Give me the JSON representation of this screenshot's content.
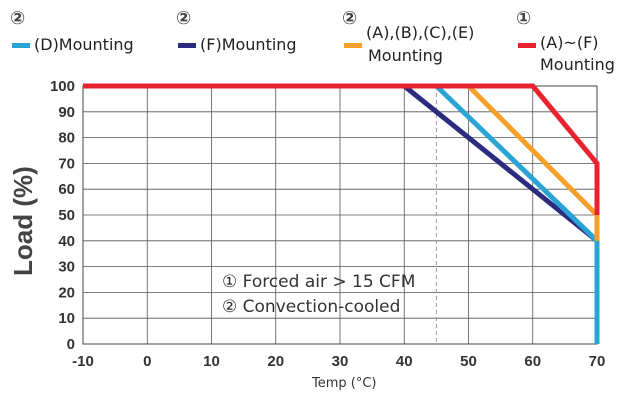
{
  "chart_data": {
    "type": "line",
    "title": "",
    "xlabel": "Temp (°C)",
    "ylabel": "Load (%)",
    "xlim": [
      -10,
      70
    ],
    "ylim": [
      0,
      100
    ],
    "xticks": [
      -10,
      0,
      10,
      20,
      30,
      40,
      50,
      60,
      70
    ],
    "yticks": [
      0,
      10,
      20,
      30,
      40,
      50,
      60,
      70,
      80,
      90,
      100
    ],
    "grid": true,
    "legend_position": "top",
    "series": [
      {
        "key": "F",
        "marker": "②",
        "name": "(F)Mounting",
        "color": "#2b2b80",
        "x": [
          -10,
          40,
          70,
          70
        ],
        "y": [
          100,
          100,
          40,
          0
        ]
      },
      {
        "key": "D",
        "marker": "②",
        "name": "(D)Mounting",
        "color": "#2aa4d4",
        "x": [
          -10,
          45,
          70,
          70
        ],
        "y": [
          100,
          100,
          40,
          0
        ]
      },
      {
        "key": "ABCE",
        "marker": "②",
        "name": "(A),(B),(C),(E) Mounting",
        "color": "#f5a02a",
        "x": [
          -10,
          50,
          70,
          70
        ],
        "y": [
          100,
          100,
          50,
          40
        ]
      },
      {
        "key": "AF",
        "marker": "①",
        "name": "(A)~(F) Mounting",
        "color": "#e8232d",
        "x": [
          -10,
          60,
          70,
          70
        ],
        "y": [
          100,
          100,
          70,
          50
        ]
      }
    ],
    "reference_line": {
      "x": 45,
      "style": "dashed"
    },
    "annotations": [
      "① Forced air > 15 CFM",
      "② Convection-cooled"
    ]
  },
  "legend": {
    "d": {
      "marker": "②",
      "label": "(D)Mounting",
      "color": "#2aa4d4"
    },
    "f": {
      "marker": "②",
      "label": "(F)Mounting",
      "color": "#2b2b80"
    },
    "abce": {
      "marker": "②",
      "label_line1": "(A),(B),(C),(E)",
      "label_line2": "Mounting",
      "color": "#f5a02a"
    },
    "af": {
      "marker": "①",
      "label_line1": "(A)~(F)",
      "label_line2": "Mounting",
      "color": "#e8232d"
    }
  }
}
